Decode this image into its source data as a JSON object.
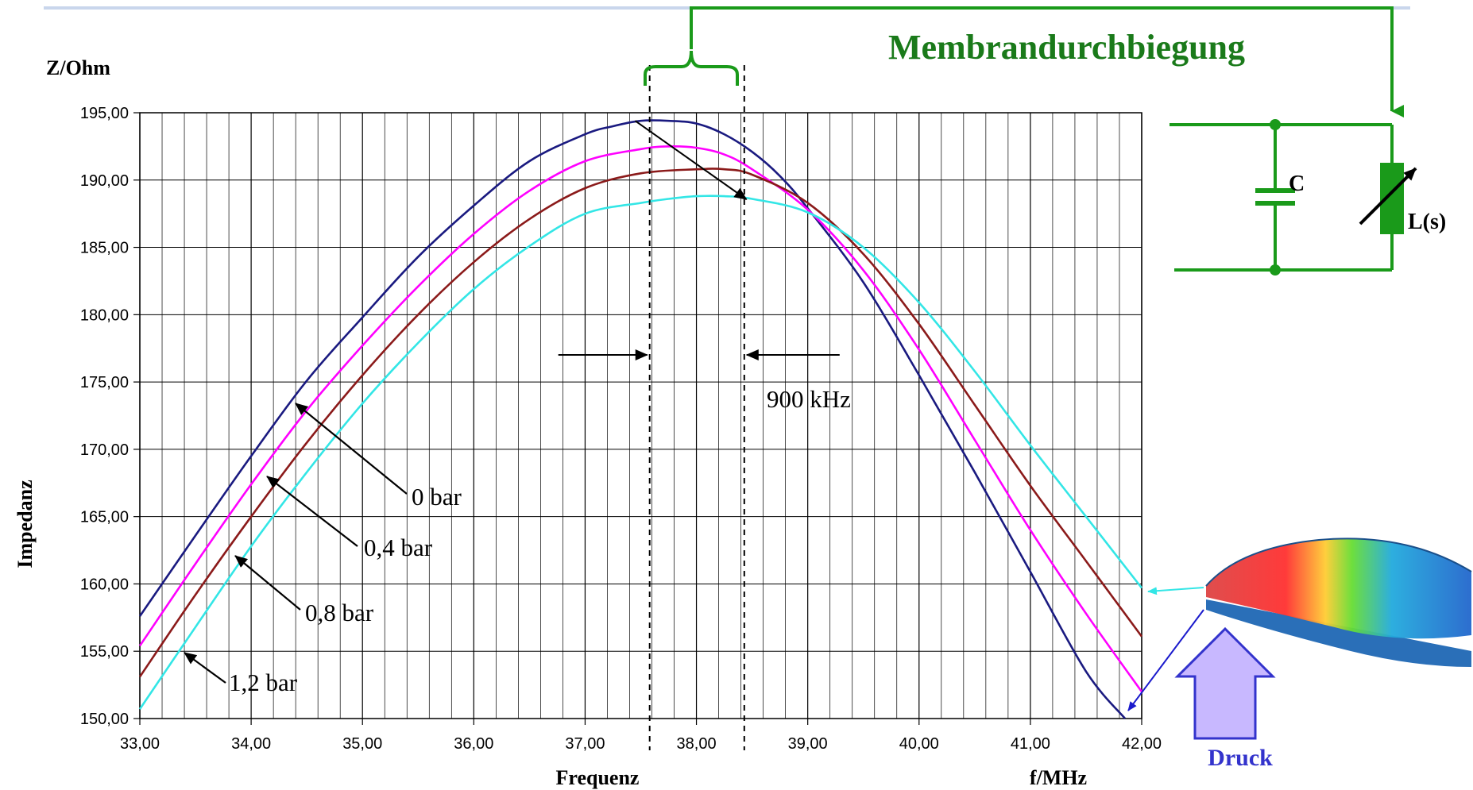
{
  "chart_data": {
    "type": "line",
    "title": "",
    "xlabel": "Frequenz",
    "xunit": "f/MHz",
    "ylabel": "Impedanz",
    "yunit": "Z/Ohm",
    "xlim": [
      33,
      42
    ],
    "ylim": [
      150,
      195
    ],
    "grid": true,
    "x_tick_labels": [
      "33,00",
      "34,00",
      "35,00",
      "36,00",
      "37,00",
      "38,00",
      "39,00",
      "40,00",
      "41,00",
      "42,00"
    ],
    "y_tick_labels": [
      "150,00",
      "155,00",
      "160,00",
      "165,00",
      "170,00",
      "175,00",
      "180,00",
      "185,00",
      "190,00",
      "195,00"
    ],
    "series": [
      {
        "name": "0 bar",
        "color": "#1a1a80",
        "x": [
          33.0,
          33.5,
          34.0,
          34.5,
          35.0,
          35.5,
          36.0,
          36.5,
          37.0,
          37.25,
          37.5,
          37.75,
          38.0,
          38.25,
          38.5,
          38.75,
          39.0,
          39.5,
          40.0,
          40.5,
          41.0,
          41.5,
          41.85
        ],
        "y": [
          157.6,
          163.6,
          169.5,
          175.1,
          179.8,
          184.3,
          188.1,
          191.4,
          193.4,
          194.0,
          194.4,
          194.4,
          194.2,
          193.4,
          192.1,
          190.3,
          187.9,
          182.4,
          175.5,
          168.3,
          160.9,
          153.5,
          150.0
        ]
      },
      {
        "name": "0,4 bar",
        "color": "#ff00ff",
        "x": [
          33.0,
          33.5,
          34.0,
          34.5,
          35.0,
          35.5,
          36.0,
          36.5,
          37.0,
          37.5,
          37.75,
          38.0,
          38.25,
          38.5,
          39.0,
          39.5,
          40.0,
          40.5,
          41.0,
          41.5,
          42.0
        ],
        "y": [
          155.4,
          161.5,
          167.4,
          172.9,
          177.7,
          182.1,
          186.0,
          189.2,
          191.4,
          192.3,
          192.5,
          192.4,
          191.9,
          190.8,
          187.8,
          183.3,
          177.4,
          170.7,
          164.0,
          157.8,
          152.0
        ]
      },
      {
        "name": "0,8 bar",
        "color": "#8b1a1a",
        "x": [
          33.0,
          33.5,
          34.0,
          34.5,
          35.0,
          35.5,
          36.0,
          36.5,
          37.0,
          37.5,
          38.0,
          38.25,
          38.5,
          39.0,
          39.5,
          40.0,
          40.5,
          41.0,
          41.5,
          42.0
        ],
        "y": [
          153.1,
          159.2,
          165.0,
          170.5,
          175.5,
          180.0,
          183.9,
          187.1,
          189.4,
          190.5,
          190.8,
          190.8,
          190.4,
          188.3,
          184.5,
          179.3,
          173.3,
          167.3,
          161.7,
          156.1
        ]
      },
      {
        "name": "1,2 bar",
        "color": "#33e6e6",
        "x": [
          33.0,
          33.5,
          34.0,
          34.5,
          35.0,
          35.5,
          36.0,
          36.5,
          37.0,
          37.5,
          37.75,
          38.0,
          38.25,
          38.5,
          39.0,
          39.5,
          40.0,
          40.5,
          41.0,
          41.5,
          42.0
        ],
        "y": [
          150.7,
          156.8,
          162.8,
          168.3,
          173.4,
          177.9,
          181.9,
          185.1,
          187.5,
          188.3,
          188.6,
          188.8,
          188.8,
          188.6,
          187.6,
          185.0,
          180.9,
          175.8,
          170.3,
          165.0,
          159.7
        ]
      }
    ],
    "annotations": {
      "delta_label": "900 kHz",
      "marker_lines_x": [
        37.58,
        38.43
      ]
    }
  },
  "diagram": {
    "title": "Membrandurchbiegung",
    "capacitor_label": "C",
    "inductor_label": "L(s)",
    "pressure_label": "Druck",
    "wire_color": "#1a9a1a"
  }
}
